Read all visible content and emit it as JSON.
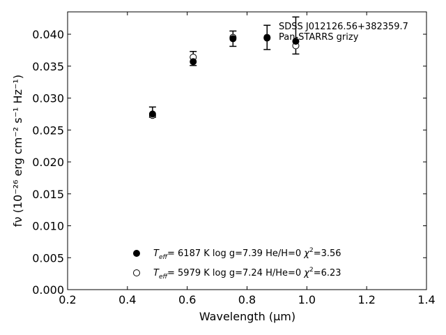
{
  "chart_data": {
    "type": "scatter",
    "title_lines": [
      "SDSS J012126.56+382359.7",
      "Pan-STARRS grizy"
    ],
    "xlabel": "Wavelength (μm)",
    "ylabel": "fν (10⁻²⁶ erg cm⁻² s⁻¹ Hz⁻¹)",
    "xlim": [
      0.2,
      1.4
    ],
    "ylim": [
      0.0,
      0.0435
    ],
    "x_ticks": [
      0.2,
      0.4,
      0.6,
      0.8,
      1.0,
      1.2,
      1.4
    ],
    "x_tick_labels": [
      "0.2",
      "0.4",
      "0.6",
      "0.8",
      "1.0",
      "1.2",
      "1.4"
    ],
    "y_ticks": [
      0.0,
      0.005,
      0.01,
      0.015,
      0.02,
      0.025,
      0.03,
      0.035,
      0.04
    ],
    "y_tick_labels": [
      "0.000",
      "0.005",
      "0.010",
      "0.015",
      "0.020",
      "0.025",
      "0.030",
      "0.035",
      "0.040"
    ],
    "grid": false,
    "observed": {
      "x": [
        0.484,
        0.62,
        0.753,
        0.867,
        0.963
      ],
      "y": [
        0.0278,
        0.0362,
        0.0393,
        0.0395,
        0.0398
      ],
      "err": [
        0.0008,
        0.0011,
        0.0012,
        0.0019,
        0.0029
      ]
    },
    "series": [
      {
        "marker": "filled",
        "x": [
          0.484,
          0.62,
          0.753,
          0.867,
          0.963
        ],
        "y": [
          0.0275,
          0.0357,
          0.0393,
          0.0394,
          0.0389
        ]
      },
      {
        "marker": "open",
        "x": [
          0.484,
          0.62,
          0.753,
          0.867,
          0.963
        ],
        "y": [
          0.0273,
          0.0364,
          0.0395,
          0.0395,
          0.0382
        ]
      }
    ],
    "legend": {
      "placement": "lower-center",
      "entries": [
        {
          "marker": "filled",
          "teff_symbol": "T",
          "teff_sub": "eff",
          "text": "=  6187 K  log g=7.39  He/H=0  ",
          "chi_symbol": "χ",
          "chi_sup": "2",
          "chi_value": "=3.56"
        },
        {
          "marker": "open",
          "teff_symbol": "T",
          "teff_sub": "eff",
          "text": "=  5979 K  log g=7.24  H/He=0  ",
          "chi_symbol": "χ",
          "chi_sup": "2",
          "chi_value": "=6.23"
        }
      ]
    }
  }
}
